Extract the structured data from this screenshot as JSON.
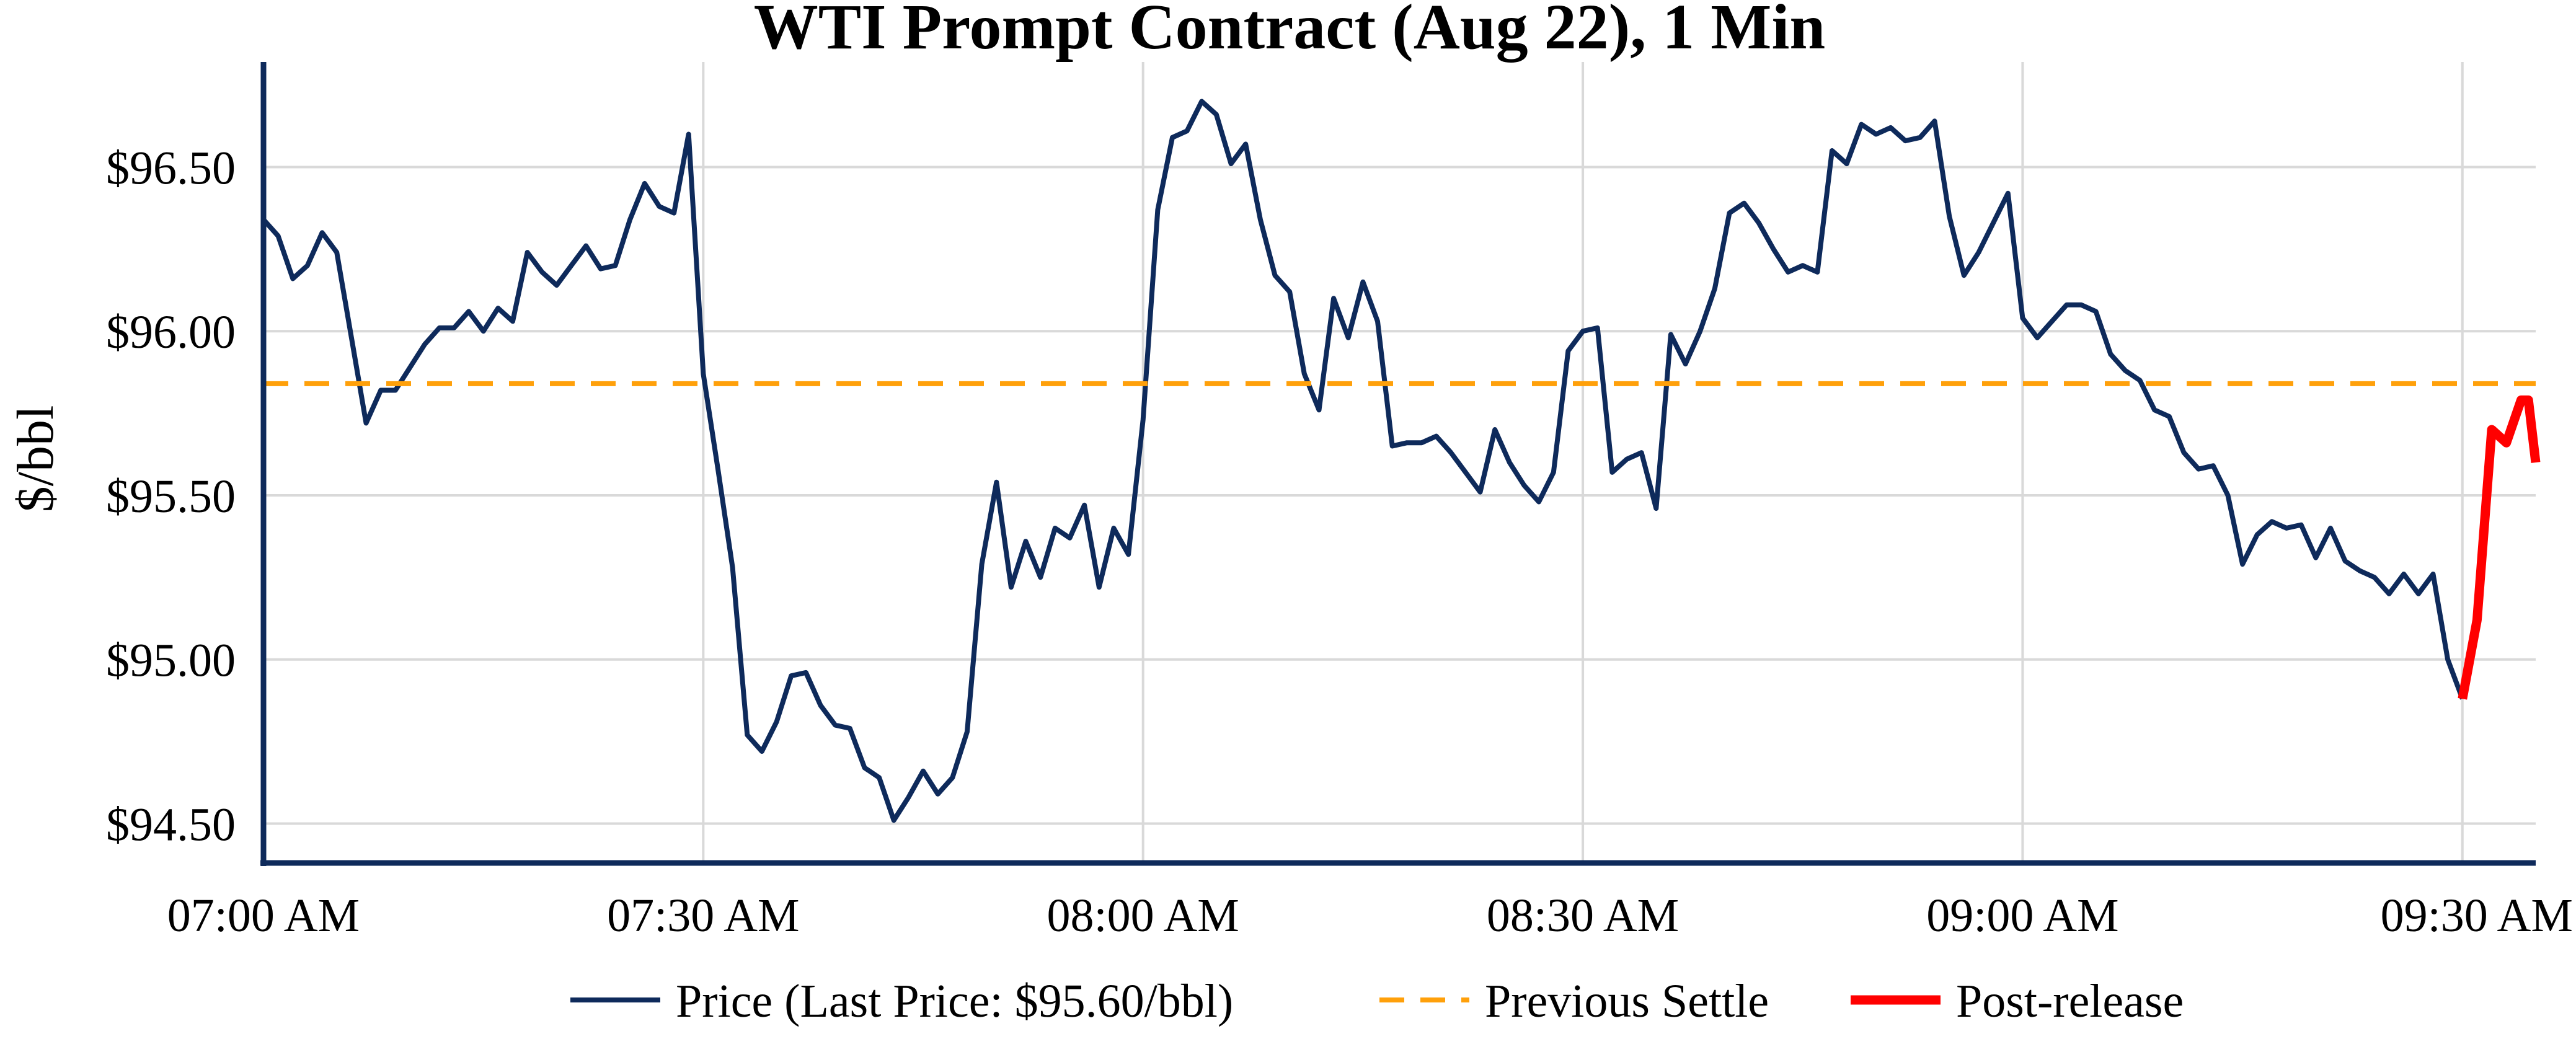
{
  "chart_data": {
    "type": "line",
    "title": "WTI Prompt Contract (Aug 22), 1 Min",
    "xlabel": "",
    "ylabel": "$/bbl",
    "grid": true,
    "x_range_minutes": [
      0,
      155
    ],
    "ylim": [
      94.38,
      96.82
    ],
    "x_ticks": [
      {
        "minute": 0,
        "label": "07:00 AM"
      },
      {
        "minute": 30,
        "label": "07:30 AM"
      },
      {
        "minute": 60,
        "label": "08:00 AM"
      },
      {
        "minute": 90,
        "label": "08:30 AM"
      },
      {
        "minute": 120,
        "label": "09:00 AM"
      },
      {
        "minute": 150,
        "label": "09:30 AM"
      }
    ],
    "y_ticks": [
      {
        "value": 94.5,
        "label": "$94.50"
      },
      {
        "value": 95.0,
        "label": "$95.00"
      },
      {
        "value": 95.5,
        "label": "$95.50"
      },
      {
        "value": 96.0,
        "label": "$96.00"
      },
      {
        "value": 96.5,
        "label": "$96.50"
      }
    ],
    "legend_position": "bottom",
    "series": [
      {
        "name": "Price (Last Price: $95.60/bbl)",
        "color": "#0e2a5b",
        "style": "solid",
        "x": [
          0,
          1,
          2,
          3,
          4,
          5,
          6,
          7,
          8,
          9,
          10,
          11,
          12,
          13,
          14,
          15,
          16,
          17,
          18,
          19,
          20,
          21,
          22,
          23,
          24,
          25,
          26,
          27,
          28,
          29,
          30,
          31,
          32,
          33,
          34,
          35,
          36,
          37,
          38,
          39,
          40,
          41,
          42,
          43,
          44,
          45,
          46,
          47,
          48,
          49,
          50,
          51,
          52,
          53,
          54,
          55,
          56,
          57,
          58,
          59,
          60,
          61,
          62,
          63,
          64,
          65,
          66,
          67,
          68,
          69,
          70,
          71,
          72,
          73,
          74,
          75,
          76,
          77,
          78,
          79,
          80,
          81,
          82,
          83,
          84,
          85,
          86,
          87,
          88,
          89,
          90,
          91,
          92,
          93,
          94,
          95,
          96,
          97,
          98,
          99,
          100,
          101,
          102,
          103,
          104,
          105,
          106,
          107,
          108,
          109,
          110,
          111,
          112,
          113,
          114,
          115,
          116,
          117,
          118,
          119,
          120,
          121,
          122,
          123,
          124,
          125,
          126,
          127,
          128,
          129,
          130,
          131,
          132,
          133,
          134,
          135,
          136,
          137,
          138,
          139,
          140,
          141,
          142,
          143,
          144,
          145,
          146,
          147,
          148,
          149,
          150
        ],
        "values": [
          96.34,
          96.29,
          96.16,
          96.2,
          96.3,
          96.24,
          95.98,
          95.72,
          95.82,
          95.82,
          95.89,
          95.96,
          96.01,
          96.01,
          96.06,
          96.0,
          96.07,
          96.03,
          96.24,
          96.18,
          96.14,
          96.2,
          96.26,
          96.19,
          96.2,
          96.34,
          96.45,
          96.38,
          96.36,
          96.6,
          95.87,
          95.58,
          95.28,
          94.77,
          94.72,
          94.81,
          94.95,
          94.96,
          94.86,
          94.8,
          94.79,
          94.67,
          94.64,
          94.51,
          94.58,
          94.66,
          94.59,
          94.64,
          94.78,
          95.29,
          95.54,
          95.22,
          95.36,
          95.25,
          95.4,
          95.37,
          95.47,
          95.22,
          95.4,
          95.32,
          95.73,
          96.37,
          96.59,
          96.61,
          96.7,
          96.66,
          96.51,
          96.57,
          96.34,
          96.17,
          96.12,
          95.87,
          95.76,
          96.1,
          95.98,
          96.15,
          96.03,
          95.65,
          95.66,
          95.66,
          95.68,
          95.63,
          95.57,
          95.51,
          95.7,
          95.6,
          95.53,
          95.48,
          95.57,
          95.94,
          96.0,
          96.01,
          95.57,
          95.61,
          95.63,
          95.46,
          95.99,
          95.9,
          96.0,
          96.13,
          96.36,
          96.39,
          96.33,
          96.25,
          96.18,
          96.2,
          96.18,
          96.55,
          96.51,
          96.63,
          96.6,
          96.62,
          96.58,
          96.59,
          96.64,
          96.35,
          96.17,
          96.24,
          96.33,
          96.42,
          96.04,
          95.98,
          96.03,
          96.08,
          96.08,
          96.06,
          95.93,
          95.88,
          95.85,
          95.76,
          95.74,
          95.63,
          95.58,
          95.59,
          95.5,
          95.29,
          95.38,
          95.42,
          95.4,
          95.41,
          95.31,
          95.4,
          95.3,
          95.27,
          95.25,
          95.2,
          95.26,
          95.2,
          95.26,
          95.0,
          94.88
        ]
      },
      {
        "name": "Previous Settle",
        "color": "#ffa00a",
        "style": "dashed",
        "x": [
          0,
          155
        ],
        "values": [
          95.84,
          95.84
        ]
      },
      {
        "name": "Post-release",
        "color": "#ff0000",
        "style": "solid-thick",
        "x": [
          150,
          151,
          152,
          153,
          154,
          154.5,
          155
        ],
        "values": [
          94.88,
          95.12,
          95.7,
          95.66,
          95.79,
          95.79,
          95.6
        ]
      }
    ]
  }
}
